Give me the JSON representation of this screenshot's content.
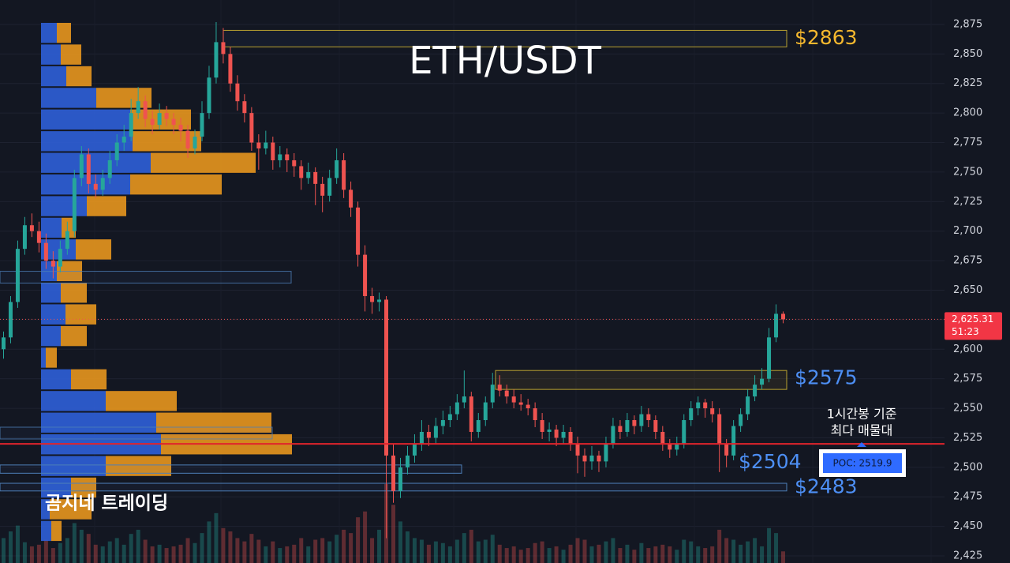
{
  "chart_data": {
    "type": "candlestick",
    "title": "ETH/USDT",
    "watermark": "곰지네 트레이딩",
    "up_color": "#26a69a",
    "down_color": "#ef5350",
    "ylim": [
      2419,
      2895.7
    ],
    "yticks": [
      {
        "value": 2425,
        "label": "2,425"
      },
      {
        "value": 2450,
        "label": "2,450"
      },
      {
        "value": 2475,
        "label": "2,475"
      },
      {
        "value": 2500,
        "label": "2,500"
      },
      {
        "value": 2525,
        "label": "2,525"
      },
      {
        "value": 2550,
        "label": "2,550"
      },
      {
        "value": 2575,
        "label": "2,575"
      },
      {
        "value": 2600,
        "label": "2,600"
      },
      {
        "value": 2625,
        "label": "2,625"
      },
      {
        "value": 2650,
        "label": "2,650"
      },
      {
        "value": 2675,
        "label": "2,675"
      },
      {
        "value": 2700,
        "label": "2,700"
      },
      {
        "value": 2725,
        "label": "2,725"
      },
      {
        "value": 2750,
        "label": "2,750"
      },
      {
        "value": 2775,
        "label": "2,775"
      },
      {
        "value": 2800,
        "label": "2,800"
      },
      {
        "value": 2825,
        "label": "2,825"
      },
      {
        "value": 2850,
        "label": "2,850"
      },
      {
        "value": 2875,
        "label": "2,875"
      }
    ],
    "grid": true,
    "last_price": {
      "value": 2625.31,
      "label": "2,625.31"
    },
    "countdown": "51:23",
    "poc": {
      "value": 2519.9,
      "label": "POC: 2519.9"
    },
    "poc_note": [
      "1시간봉 기준",
      "최다 매물대"
    ],
    "levels": [
      {
        "value": 2863,
        "label": "$2863",
        "low": 2856,
        "high": 2870,
        "color": "#f5b82e"
      },
      {
        "value": 2575,
        "label": "$2575",
        "low": 2566,
        "high": 2582,
        "color": "#4d8ff5"
      },
      {
        "value": 2504,
        "label": "$2504",
        "low": 2495,
        "high": 2502,
        "color": "#4d8ff5"
      },
      {
        "value": 2483,
        "label": "$2483",
        "low": 2480,
        "high": 2486.5,
        "color": "#4d8ff5"
      }
    ],
    "zones": [
      {
        "low": 2656,
        "high": 2666
      },
      {
        "low": 2524,
        "high": 2534
      }
    ],
    "profile": {
      "up_color": "#2f5fd8",
      "down_color": "#e8961e",
      "bins": [
        2877.0,
        2858.7,
        2840.3,
        2822.0,
        2803.7,
        2785.3,
        2767.0,
        2748.7,
        2730.3,
        2712.0,
        2693.7,
        2675.3,
        2657.0,
        2638.7,
        2620.3,
        2602.0,
        2583.7,
        2565.3,
        2547.0,
        2528.7,
        2510.3,
        2492.0,
        2473.7,
        2455.3,
        2437.0
      ],
      "up": [
        20,
        25,
        32,
        70,
        113,
        116,
        139,
        113,
        58,
        26,
        44,
        20,
        25,
        31,
        25,
        6,
        38,
        82,
        146,
        152,
        82,
        38,
        11,
        13
      ],
      "down": [
        18,
        26,
        32,
        70,
        77,
        87,
        133,
        116,
        50,
        18,
        45,
        32,
        33,
        39,
        33,
        14,
        45,
        90,
        146,
        166,
        83,
        32,
        53,
        13
      ]
    },
    "candles": [
      [
        2600,
        2615,
        2592,
        2610
      ],
      [
        2610,
        2645,
        2605,
        2640
      ],
      [
        2640,
        2692,
        2635,
        2685
      ],
      [
        2685,
        2712,
        2680,
        2705
      ],
      [
        2705,
        2715,
        2695,
        2700
      ],
      [
        2700,
        2708,
        2682,
        2690
      ],
      [
        2690,
        2698,
        2668,
        2675
      ],
      [
        2675,
        2683,
        2660,
        2670
      ],
      [
        2670,
        2692,
        2665,
        2685
      ],
      [
        2685,
        2708,
        2680,
        2700
      ],
      [
        2700,
        2752,
        2695,
        2745
      ],
      [
        2745,
        2772,
        2738,
        2765
      ],
      [
        2765,
        2770,
        2732,
        2740
      ],
      [
        2740,
        2748,
        2728,
        2735
      ],
      [
        2735,
        2752,
        2730,
        2745
      ],
      [
        2745,
        2768,
        2740,
        2760
      ],
      [
        2760,
        2782,
        2755,
        2775
      ],
      [
        2775,
        2790,
        2768,
        2780
      ],
      [
        2780,
        2812,
        2776,
        2800
      ],
      [
        2800,
        2822,
        2795,
        2810
      ],
      [
        2810,
        2815,
        2788,
        2795
      ],
      [
        2795,
        2802,
        2782,
        2790
      ],
      [
        2790,
        2808,
        2786,
        2800
      ],
      [
        2800,
        2806,
        2789,
        2795
      ],
      [
        2795,
        2800,
        2782,
        2790
      ],
      [
        2790,
        2796,
        2776,
        2785
      ],
      [
        2785,
        2790,
        2762,
        2770
      ],
      [
        2770,
        2786,
        2765,
        2780
      ],
      [
        2780,
        2810,
        2776,
        2800
      ],
      [
        2800,
        2840,
        2795,
        2830
      ],
      [
        2830,
        2877,
        2825,
        2860
      ],
      [
        2860,
        2872,
        2842,
        2850
      ],
      [
        2850,
        2856,
        2818,
        2825
      ],
      [
        2825,
        2832,
        2802,
        2810
      ],
      [
        2810,
        2816,
        2792,
        2800
      ],
      [
        2800,
        2805,
        2768,
        2775
      ],
      [
        2775,
        2782,
        2752,
        2770
      ],
      [
        2770,
        2785,
        2765,
        2775
      ],
      [
        2775,
        2780,
        2752,
        2760
      ],
      [
        2760,
        2772,
        2754,
        2765
      ],
      [
        2765,
        2770,
        2750,
        2760
      ],
      [
        2760,
        2766,
        2746,
        2755
      ],
      [
        2755,
        2760,
        2735,
        2745
      ],
      [
        2745,
        2758,
        2740,
        2750
      ],
      [
        2750,
        2754,
        2722,
        2740
      ],
      [
        2740,
        2746,
        2716,
        2730
      ],
      [
        2730,
        2752,
        2725,
        2745
      ],
      [
        2745,
        2770,
        2740,
        2760
      ],
      [
        2760,
        2766,
        2728,
        2735
      ],
      [
        2735,
        2742,
        2712,
        2720
      ],
      [
        2720,
        2725,
        2670,
        2680
      ],
      [
        2680,
        2688,
        2632,
        2645
      ],
      [
        2645,
        2652,
        2630,
        2640
      ],
      [
        2640,
        2648,
        2632,
        2642
      ],
      [
        2642,
        2645,
        2440,
        2510
      ],
      [
        2510,
        2520,
        2470,
        2480
      ],
      [
        2480,
        2508,
        2474,
        2500
      ],
      [
        2500,
        2518,
        2494,
        2510
      ],
      [
        2510,
        2528,
        2504,
        2520
      ],
      [
        2520,
        2540,
        2514,
        2530
      ],
      [
        2530,
        2536,
        2518,
        2525
      ],
      [
        2525,
        2542,
        2520,
        2535
      ],
      [
        2535,
        2548,
        2528,
        2540
      ],
      [
        2540,
        2552,
        2534,
        2545
      ],
      [
        2545,
        2562,
        2540,
        2555
      ],
      [
        2555,
        2582,
        2550,
        2560
      ],
      [
        2560,
        2564,
        2522,
        2530
      ],
      [
        2530,
        2546,
        2525,
        2540
      ],
      [
        2540,
        2560,
        2535,
        2555
      ],
      [
        2555,
        2580,
        2550,
        2570
      ],
      [
        2570,
        2578,
        2560,
        2565
      ],
      [
        2565,
        2570,
        2554,
        2560
      ],
      [
        2560,
        2566,
        2550,
        2555
      ],
      [
        2555,
        2562,
        2548,
        2553
      ],
      [
        2553,
        2558,
        2544,
        2550
      ],
      [
        2550,
        2555,
        2534,
        2540
      ],
      [
        2540,
        2546,
        2524,
        2530
      ],
      [
        2530,
        2538,
        2522,
        2532
      ],
      [
        2532,
        2536,
        2518,
        2525
      ],
      [
        2525,
        2536,
        2520,
        2530
      ],
      [
        2530,
        2534,
        2514,
        2520
      ],
      [
        2520,
        2526,
        2495,
        2510
      ],
      [
        2510,
        2516,
        2492,
        2505
      ],
      [
        2505,
        2518,
        2498,
        2510
      ],
      [
        2510,
        2514,
        2496,
        2505
      ],
      [
        2505,
        2526,
        2500,
        2520
      ],
      [
        2520,
        2542,
        2516,
        2535
      ],
      [
        2535,
        2540,
        2524,
        2530
      ],
      [
        2530,
        2546,
        2526,
        2540
      ],
      [
        2540,
        2544,
        2528,
        2535
      ],
      [
        2535,
        2552,
        2530,
        2545
      ],
      [
        2545,
        2550,
        2534,
        2540
      ],
      [
        2540,
        2544,
        2524,
        2530
      ],
      [
        2530,
        2535,
        2514,
        2520
      ],
      [
        2520,
        2524,
        2508,
        2515
      ],
      [
        2515,
        2526,
        2510,
        2520
      ],
      [
        2520,
        2545,
        2516,
        2540
      ],
      [
        2540,
        2556,
        2535,
        2550
      ],
      [
        2550,
        2560,
        2544,
        2555
      ],
      [
        2555,
        2558,
        2542,
        2550
      ],
      [
        2550,
        2556,
        2538,
        2545
      ],
      [
        2545,
        2550,
        2496,
        2520
      ],
      [
        2520,
        2524,
        2500,
        2510
      ],
      [
        2510,
        2540,
        2506,
        2535
      ],
      [
        2535,
        2550,
        2530,
        2545
      ],
      [
        2545,
        2566,
        2540,
        2560
      ],
      [
        2560,
        2578,
        2556,
        2570
      ],
      [
        2570,
        2584,
        2566,
        2575
      ],
      [
        2575,
        2618,
        2572,
        2610
      ],
      [
        2610,
        2638,
        2606,
        2630
      ],
      [
        2630,
        2632,
        2622,
        2625.31
      ]
    ],
    "volumes": [
      30,
      38,
      45,
      25,
      20,
      22,
      28,
      18,
      24,
      30,
      48,
      40,
      35,
      22,
      20,
      26,
      30,
      22,
      35,
      40,
      28,
      20,
      22,
      18,
      20,
      22,
      30,
      24,
      36,
      50,
      60,
      42,
      38,
      30,
      26,
      35,
      28,
      20,
      26,
      18,
      20,
      22,
      30,
      20,
      28,
      30,
      26,
      34,
      40,
      36,
      55,
      62,
      30,
      40,
      95,
      70,
      50,
      38,
      30,
      28,
      22,
      26,
      24,
      20,
      28,
      36,
      40,
      26,
      28,
      34,
      22,
      18,
      20,
      16,
      18,
      24,
      26,
      18,
      20,
      16,
      22,
      30,
      28,
      20,
      22,
      26,
      30,
      18,
      22,
      16,
      24,
      18,
      20,
      22,
      20,
      16,
      28,
      26,
      20,
      18,
      20,
      40,
      30,
      28,
      22,
      26,
      30,
      20,
      42,
      36,
      14
    ]
  }
}
